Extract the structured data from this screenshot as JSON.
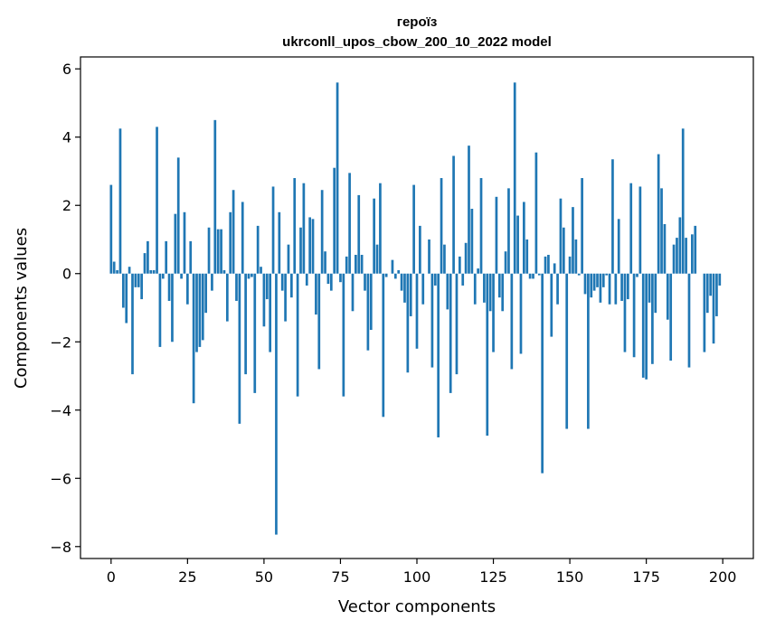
{
  "chart_data": {
    "type": "bar",
    "title": "героїз",
    "subtitle": "ukrconll_upos_cbow_200_10_2022 model",
    "xlabel": "Vector components",
    "ylabel": "Components values",
    "xlim": [
      -10,
      210
    ],
    "ylim": [
      -8.35,
      6.35
    ],
    "xticks": [
      0,
      25,
      50,
      75,
      100,
      125,
      150,
      175,
      200
    ],
    "yticks": [
      -8,
      -6,
      -4,
      -2,
      0,
      2,
      4,
      6
    ],
    "xtick_labels": [
      "0",
      "25",
      "50",
      "75",
      "100",
      "125",
      "150",
      "175",
      "200"
    ],
    "ytick_labels": [
      "−8",
      "−6",
      "−4",
      "−2",
      "0",
      "2",
      "4",
      "6"
    ],
    "bar_color": "#1f77b4",
    "values": [
      2.6,
      0.35,
      0.1,
      4.25,
      -1.0,
      -1.45,
      0.2,
      -2.95,
      -0.4,
      -0.4,
      -0.75,
      0.6,
      0.95,
      0.1,
      0.1,
      4.3,
      -2.15,
      -0.15,
      0.95,
      -0.8,
      -2.0,
      1.75,
      3.4,
      -0.15,
      1.8,
      -0.9,
      0.95,
      -3.8,
      -2.3,
      -2.15,
      -1.95,
      -1.15,
      1.35,
      -0.5,
      4.5,
      1.3,
      1.3,
      0.1,
      -1.4,
      1.8,
      2.45,
      -0.8,
      -4.4,
      2.1,
      -2.95,
      -0.15,
      -0.1,
      -3.5,
      1.4,
      0.2,
      -1.55,
      -0.75,
      -2.3,
      2.55,
      -7.65,
      1.8,
      -0.5,
      -1.4,
      0.85,
      -0.7,
      2.8,
      -3.6,
      1.35,
      2.65,
      -0.35,
      1.65,
      1.6,
      -1.2,
      -2.8,
      2.45,
      0.65,
      -0.3,
      -0.5,
      3.1,
      5.6,
      -0.25,
      -3.6,
      0.5,
      2.95,
      -1.1,
      0.55,
      2.3,
      0.55,
      -0.5,
      -2.25,
      -1.65,
      2.2,
      0.85,
      2.65,
      -4.2,
      -0.1,
      0.0,
      0.4,
      -0.15,
      0.1,
      -0.5,
      -0.85,
      -2.9,
      -1.25,
      2.6,
      -2.2,
      1.4,
      -0.9,
      0.0,
      1.0,
      -2.75,
      -0.35,
      -4.8,
      2.8,
      0.85,
      -1.05,
      -3.5,
      3.45,
      -2.95,
      0.5,
      -0.35,
      0.9,
      3.75,
      1.9,
      -0.9,
      0.15,
      2.8,
      -0.85,
      -4.75,
      -1.1,
      -2.3,
      2.25,
      -0.7,
      -1.1,
      0.65,
      2.5,
      -2.8,
      5.6,
      1.7,
      -2.35,
      2.1,
      1.0,
      -0.15,
      -0.15,
      3.55,
      -0.05,
      -5.85,
      0.5,
      0.55,
      -1.85,
      0.3,
      -0.9,
      2.2,
      1.35,
      -4.55,
      0.5,
      1.95,
      1.0,
      -0.05,
      2.8,
      -0.6,
      -4.55,
      -0.7,
      -0.5,
      -0.4,
      -0.85,
      -0.4,
      -0.05,
      -0.9,
      3.35,
      -0.9,
      1.6,
      -0.8,
      -2.3,
      -0.75,
      2.65,
      -2.45,
      -0.1,
      2.55,
      -3.05,
      -3.1,
      -0.85,
      -2.65,
      -1.15,
      3.5,
      2.5,
      1.45,
      -1.35,
      -2.55,
      0.85,
      1.05,
      1.65,
      4.25,
      1.05,
      -2.75,
      1.15,
      1.4,
      0.0,
      0.0,
      -2.3,
      -1.15,
      -0.65,
      -2.05,
      -1.25,
      -0.35
    ]
  }
}
